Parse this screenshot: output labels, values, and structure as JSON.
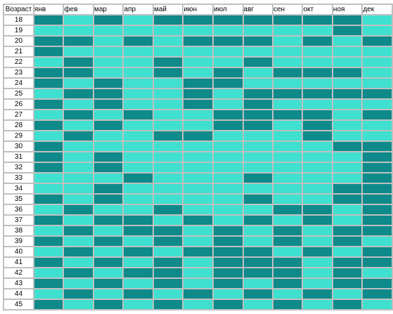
{
  "table": {
    "corner_label": "Возраст",
    "months": [
      "янв",
      "фев",
      "мар",
      "апр",
      "май",
      "июн",
      "июл",
      "авг",
      "сен",
      "окт",
      "ноя",
      "дек"
    ],
    "colors": {
      "dark": "#0e8a8a",
      "light": "#3fe0d0"
    },
    "rows": [
      {
        "age": "18",
        "cells": "DLDLDDDDDDDL"
      },
      {
        "age": "19",
        "cells": "LLLLLLLLLLDL"
      },
      {
        "age": "20",
        "cells": "DDLDLDDDLDLD"
      },
      {
        "age": "21",
        "cells": "DLLLLLLLLLLL"
      },
      {
        "age": "22",
        "cells": "LDLLDLLDLLLL"
      },
      {
        "age": "23",
        "cells": "DDLLDLDLDDDL"
      },
      {
        "age": "24",
        "cells": "DLDLLDDLLLLL"
      },
      {
        "age": "25",
        "cells": "LDDLLDLDDDDD"
      },
      {
        "age": "26",
        "cells": "DLDLLDLDLLLL"
      },
      {
        "age": "27",
        "cells": "LDLDLLDDDDLD"
      },
      {
        "age": "28",
        "cells": "DLDLLLDDLDLL"
      },
      {
        "age": "29",
        "cells": "LDLLDDLLLDLL"
      },
      {
        "age": "30",
        "cells": "DLLLLLLLLLDD"
      },
      {
        "age": "31",
        "cells": "DLDLLLLLLLLD"
      },
      {
        "age": "32",
        "cells": "DLDLLLLLLLLD"
      },
      {
        "age": "33",
        "cells": "LLLDLLLDLLLD"
      },
      {
        "age": "34",
        "cells": "LLDLLLLLLLDD"
      },
      {
        "age": "35",
        "cells": "DLDLLLLDLLDD"
      },
      {
        "age": "36",
        "cells": "LDLLDLLLDDLD"
      },
      {
        "age": "37",
        "cells": "DLDDLDLDLDLD"
      },
      {
        "age": "38",
        "cells": "LDLDDLDLDLDD"
      },
      {
        "age": "39",
        "cells": "DLDLDLDLDLDL"
      },
      {
        "age": "40",
        "cells": "LDLDLDDDLDLD"
      },
      {
        "age": "41",
        "cells": "DLDLDLDDDLDD"
      },
      {
        "age": "42",
        "cells": "LDLDDLDDDLDL"
      },
      {
        "age": "43",
        "cells": "DLDLDLDLDLDD"
      },
      {
        "age": "44",
        "cells": "LDLDLDLDLDLD"
      },
      {
        "age": "45",
        "cells": "DLDLDLDLDLDL"
      }
    ]
  }
}
